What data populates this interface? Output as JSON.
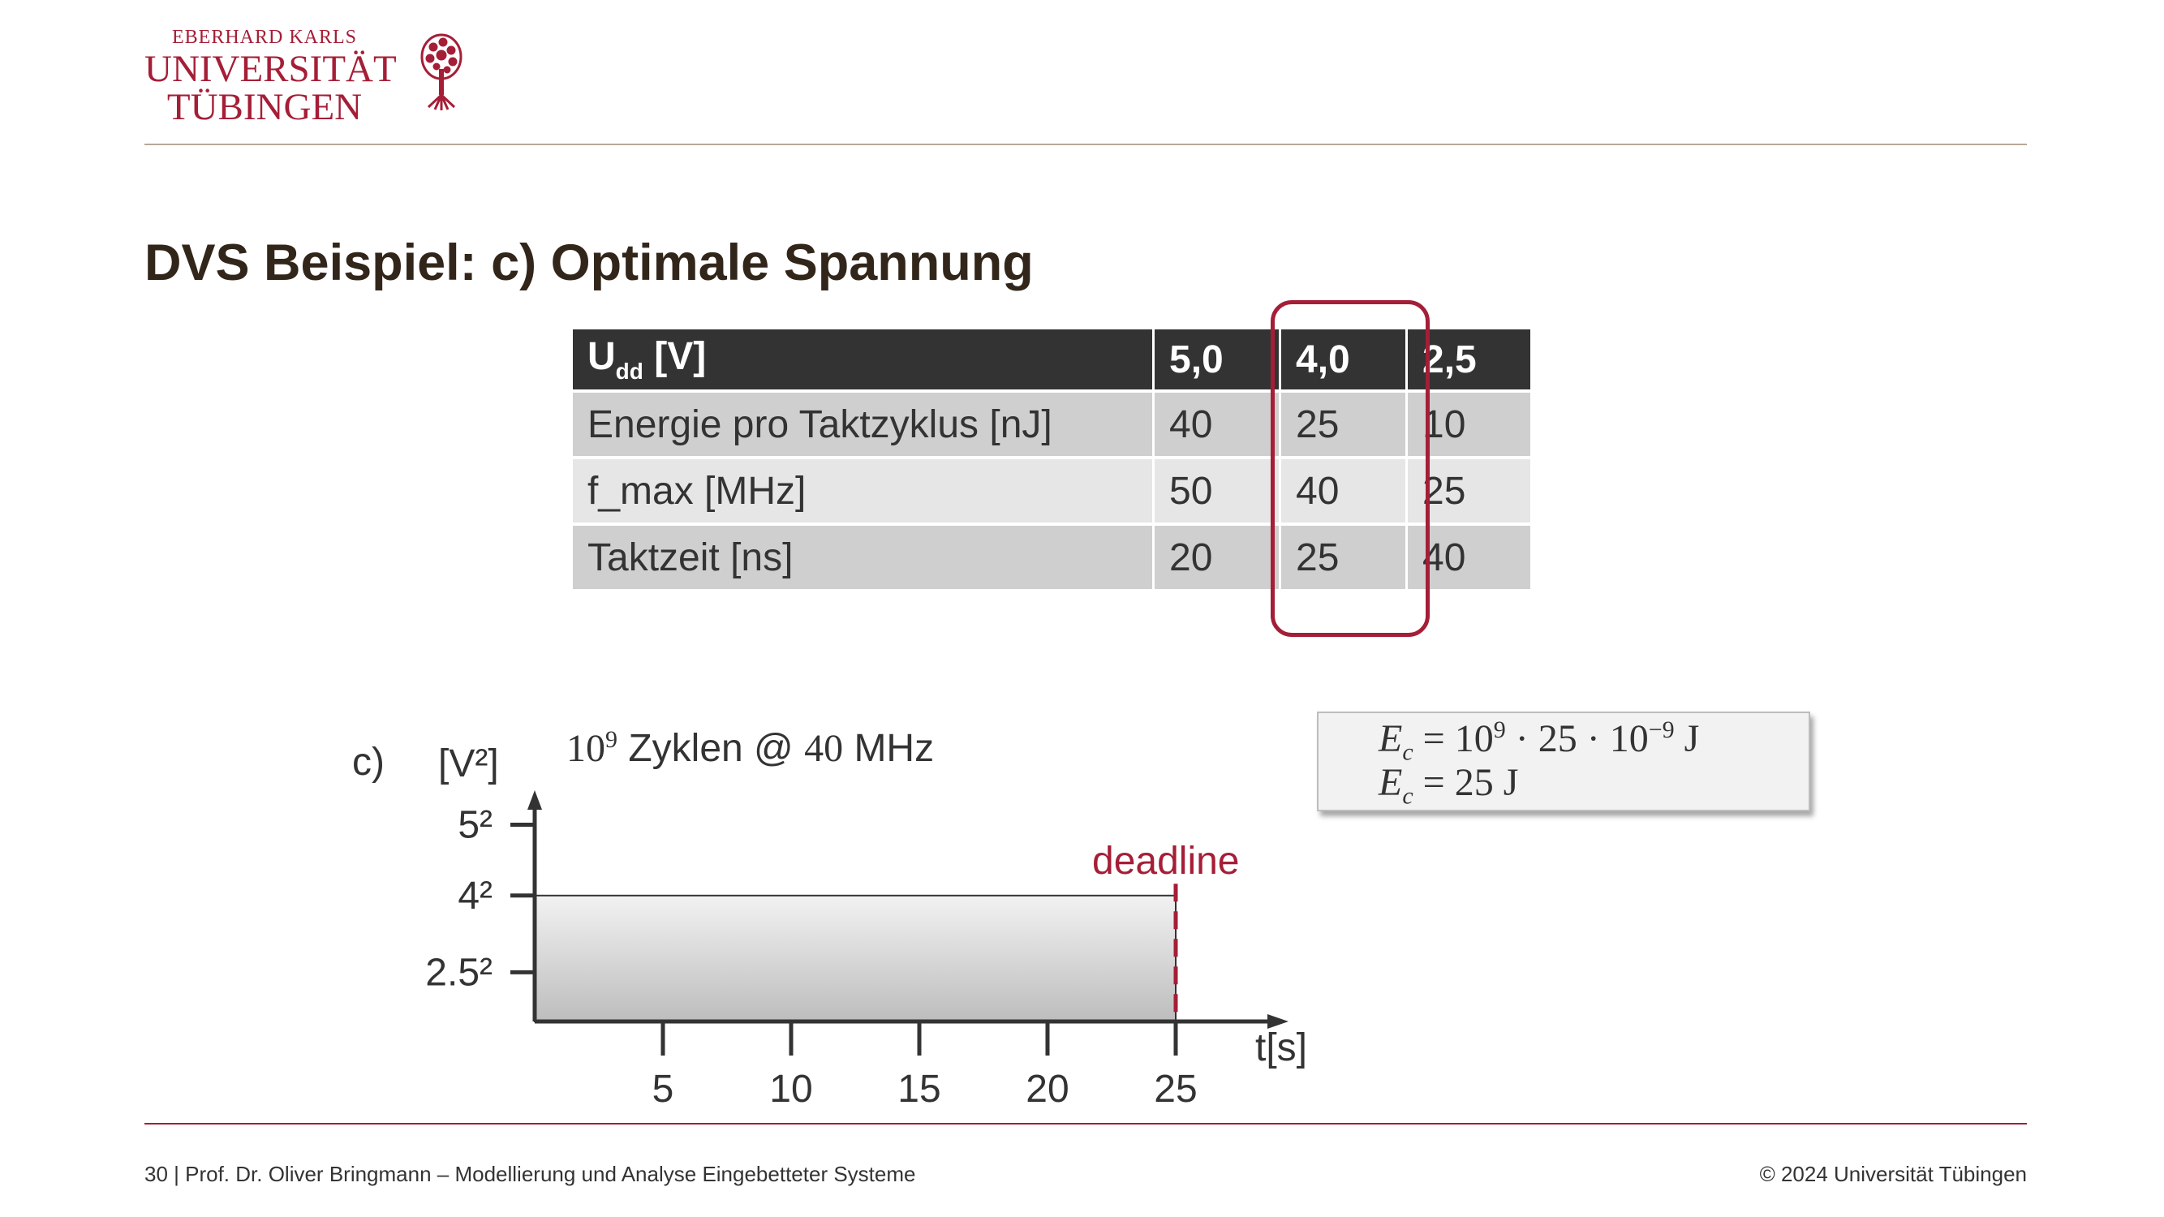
{
  "logo": {
    "line1": "EBERHARD KARLS",
    "line2": "UNIVERSITÄT",
    "line3": "TÜBINGEN",
    "icon": "university-tree-seal",
    "color": "#a51e37"
  },
  "title": "DVS Beispiel: c) Optimale Spannung",
  "table": {
    "header": {
      "label_main": "U",
      "label_sub": "dd",
      "label_unit": " [V]",
      "values": [
        "5,0",
        "4,0",
        "2,5"
      ]
    },
    "rows": [
      {
        "label": "Energie pro Taktzyklus [nJ]",
        "values": [
          "40",
          "25",
          "10"
        ]
      },
      {
        "label": "f_max [MHz]",
        "values": [
          "50",
          "40",
          "25"
        ]
      },
      {
        "label": "Taktzeit [ns]",
        "values": [
          "20",
          "25",
          "40"
        ]
      }
    ],
    "highlighted_column": "4,0",
    "highlight_color": "#a51e37"
  },
  "chart": {
    "part_label": "c)",
    "caption_base": "10",
    "caption_exp": "9",
    "caption_mid": " Zyklen @ ",
    "caption_freq": "40",
    "caption_unit": " MHz",
    "deadline_label": "deadline",
    "deadline_color": "#a51e37"
  },
  "chart_data": {
    "type": "area",
    "ylabel": "[V²]",
    "xlabel": "t[s]",
    "x_ticks": [
      5,
      10,
      15,
      20,
      25
    ],
    "x_tick_labels": [
      "5",
      "10",
      "15",
      "20",
      "25"
    ],
    "y_ticks": [
      6.25,
      16,
      25
    ],
    "y_tick_labels": [
      "2.5²",
      "4²",
      "5²"
    ],
    "xlim": [
      0,
      30
    ],
    "ylim": [
      0,
      30
    ],
    "series": [
      {
        "x_start": 0,
        "x_end": 25,
        "y": 16
      }
    ],
    "deadline_x": 25,
    "grid": false
  },
  "formula": {
    "line1": {
      "lhs": "E",
      "lhs_sub": "c",
      "eq": " = 10",
      "exp1": "9",
      "mid": " · 25 · 10",
      "exp2": "−9",
      "unit": " J"
    },
    "line2": {
      "lhs": "E",
      "lhs_sub": "c",
      "rest": " = 25 J"
    }
  },
  "footer": {
    "left": "30 | Prof. Dr. Oliver Bringmann – Modellierung und Analyse Eingebetteter Systeme",
    "right": "© 2024 Universität Tübingen"
  }
}
